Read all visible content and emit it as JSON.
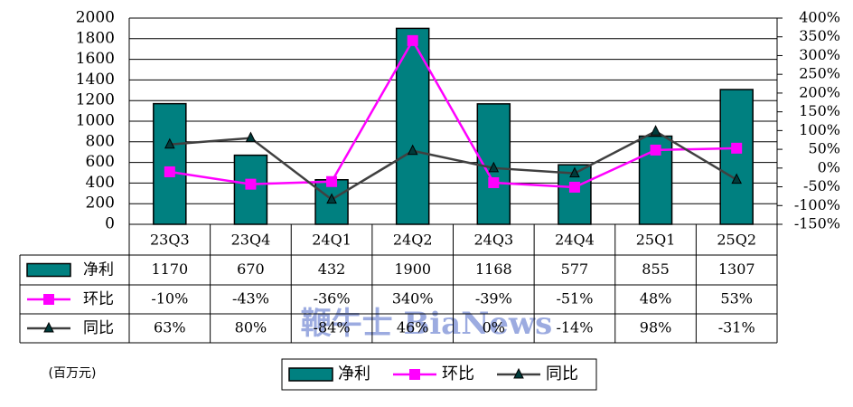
{
  "chart_data": {
    "type": "bar",
    "unit_label": "(百万元)",
    "watermark": "鞭牛士 BiaNews",
    "categories": [
      "23Q3",
      "23Q4",
      "24Q1",
      "24Q2",
      "24Q3",
      "24Q4",
      "25Q1",
      "25Q2"
    ],
    "series": [
      {
        "name": "净利",
        "type": "bar",
        "color": "#008080",
        "axis": "y",
        "values": [
          1170,
          670,
          432,
          1900,
          1168,
          577,
          855,
          1307
        ]
      },
      {
        "name": "环比",
        "type": "line",
        "color": "#ff00ff",
        "marker": "square",
        "axis": "y2",
        "values": [
          -10,
          -43,
          -36,
          340,
          -39,
          -51,
          48,
          53
        ],
        "value_labels": [
          "-10%",
          "-43%",
          "-36%",
          "340%",
          "-39%",
          "-51%",
          "48%",
          "53%"
        ]
      },
      {
        "name": "同比",
        "type": "line",
        "color": "#404040",
        "marker": "triangle",
        "axis": "y2",
        "values": [
          63,
          80,
          -84,
          46,
          0,
          -14,
          98,
          -31
        ],
        "value_labels": [
          "63%",
          "80%",
          "-84%",
          "46%",
          "0%",
          "-14%",
          "98%",
          "-31%"
        ]
      }
    ],
    "ylim": [
      0,
      2000
    ],
    "yticks": [
      0,
      200,
      400,
      600,
      800,
      1000,
      1200,
      1400,
      1600,
      1800,
      2000
    ],
    "y2lim": [
      -150,
      400
    ],
    "y2ticks": [
      {
        "value": -150,
        "label": "-150%"
      },
      {
        "value": -100,
        "label": "-100%"
      },
      {
        "value": -50,
        "label": "-50%"
      },
      {
        "value": 0,
        "label": "0%"
      },
      {
        "value": 50,
        "label": "50%"
      },
      {
        "value": 100,
        "label": "100%"
      },
      {
        "value": 150,
        "label": "150%"
      },
      {
        "value": 200,
        "label": "200%"
      },
      {
        "value": 250,
        "label": "250%"
      },
      {
        "value": 300,
        "label": "300%"
      },
      {
        "value": 350,
        "label": "350%"
      },
      {
        "value": 400,
        "label": "400%"
      }
    ],
    "grid": true
  }
}
